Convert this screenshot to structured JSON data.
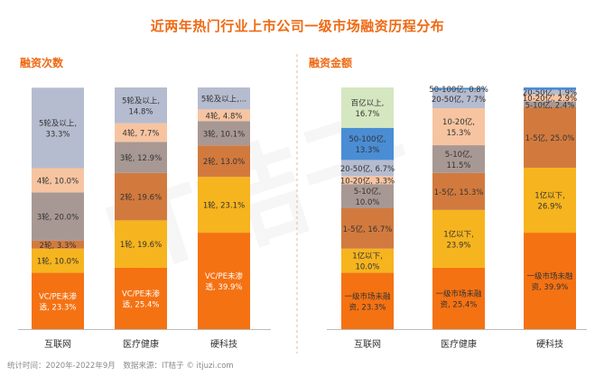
{
  "page": {
    "title": "近两年热门行业上市公司一级市场融资历程分布",
    "footer_time": "统计时间：2020年-2022年9月",
    "footer_source": "数据来源：IT桔子 © itjuzi.com",
    "watermark": "IT桔子"
  },
  "colors": {
    "title": "#ee6a13",
    "axis": "#bbbbbb",
    "divider": "#f2b78f"
  },
  "chart_data": [
    {
      "type": "bar",
      "stacked": true,
      "title": "融资次数",
      "categories": [
        "互联网",
        "医疗健康",
        "硬科技"
      ],
      "ylim": [
        0,
        100
      ],
      "series": [
        {
          "name": "VC/PE未渗透",
          "color": "#f57213",
          "text_color": "#ffffff",
          "values": [
            23.3,
            25.4,
            39.9
          ],
          "labels": [
            [
              "VC/PE未渗",
              "透, 23.3%"
            ],
            [
              "VC/PE未渗",
              "透, 25.4%"
            ],
            [
              "VC/PE未渗",
              "透, 39.9%"
            ]
          ]
        },
        {
          "name": "1轮",
          "color": "#f6b41e",
          "text_color": "#333333",
          "values": [
            10.0,
            19.6,
            23.1
          ],
          "labels": [
            [
              "1轮, 10.0%"
            ],
            [
              "1轮, 19.6%"
            ],
            [
              "1轮, 23.1%"
            ]
          ]
        },
        {
          "name": "2轮",
          "color": "#d27a3e",
          "text_color": "#333333",
          "values": [
            3.3,
            19.6,
            13.0
          ],
          "labels": [
            [
              "2轮, 3.3%"
            ],
            [
              "2轮, 19.6%"
            ],
            [
              "2轮, 13.0%"
            ]
          ]
        },
        {
          "name": "3轮",
          "color": "#a89893",
          "text_color": "#333333",
          "values": [
            20.0,
            12.9,
            10.1
          ],
          "labels": [
            [
              "3轮, 20.0%"
            ],
            [
              "3轮, 12.9%"
            ],
            [
              "3轮, 10.1%"
            ]
          ]
        },
        {
          "name": "4轮",
          "color": "#f7c4a1",
          "text_color": "#333333",
          "values": [
            10.0,
            7.7,
            4.8
          ],
          "labels": [
            [
              "4轮, 10.0%"
            ],
            [
              "4轮, 7.7%"
            ],
            [
              "4轮, 4.8%"
            ]
          ]
        },
        {
          "name": "5轮及以上",
          "color": "#b6bccf",
          "text_color": "#333333",
          "values": [
            33.3,
            14.8,
            9.1
          ],
          "labels": [
            [
              "5轮及以上,",
              "33.3%"
            ],
            [
              "5轮及以上,",
              "14.8%"
            ],
            [
              "5轮及以上,..."
            ]
          ]
        }
      ]
    },
    {
      "type": "bar",
      "stacked": true,
      "title": "融资金额",
      "categories": [
        "互联网",
        "医疗健康",
        "硬科技"
      ],
      "ylim": [
        0,
        100
      ],
      "series": [
        {
          "name": "一级市场未融资",
          "color": "#f57213",
          "text_color": "#333333",
          "values": [
            23.3,
            25.4,
            39.9
          ],
          "labels": [
            [
              "一级市场未融",
              "资, 23.3%"
            ],
            [
              "一级市场未融",
              "资, 25.4%"
            ],
            [
              "一级市场未融",
              "资, 39.9%"
            ]
          ]
        },
        {
          "name": "1亿以下",
          "color": "#f6b41e",
          "text_color": "#333333",
          "values": [
            10.0,
            23.9,
            26.9
          ],
          "labels": [
            [
              "1亿以下,",
              "10.0%"
            ],
            [
              "1亿以下,",
              "23.9%"
            ],
            [
              "1亿以下,",
              "26.9%"
            ]
          ]
        },
        {
          "name": "1-5亿",
          "color": "#d27a3e",
          "text_color": "#333333",
          "values": [
            16.7,
            15.3,
            25.0
          ],
          "labels": [
            [
              "1-5亿, 16.7%"
            ],
            [
              "1-5亿, 15.3%"
            ],
            [
              "1-5亿, 25.0%"
            ]
          ]
        },
        {
          "name": "5-10亿",
          "color": "#a89893",
          "text_color": "#333333",
          "values": [
            10.0,
            11.5,
            2.4
          ],
          "labels": [
            [
              "5-10亿,",
              "10.0%"
            ],
            [
              "5-10亿,",
              "11.5%"
            ],
            [
              "5-10亿, 2.4%"
            ]
          ]
        },
        {
          "name": "10-20亿",
          "color": "#f7c4a1",
          "text_color": "#333333",
          "values": [
            3.3,
            15.3,
            2.9
          ],
          "labels": [
            [
              "10-20亿, 3.3%"
            ],
            [
              "10-20亿,",
              "15.3%"
            ],
            [
              "10-20亿, 2.9%"
            ]
          ]
        },
        {
          "name": "20-50亿",
          "color": "#b6bccf",
          "text_color": "#333333",
          "values": [
            6.7,
            7.7,
            1.9
          ],
          "labels": [
            [
              "20-50亿, 6.7%"
            ],
            [
              "20-50亿, 7.7%"
            ],
            [
              "20-50亿, 1.9%"
            ]
          ]
        },
        {
          "name": "50-100亿",
          "color": "#4a8dd4",
          "text_color": "#333333",
          "values": [
            13.3,
            0.8,
            1.0
          ],
          "labels": [
            [
              "50-100亿,",
              "13.3%"
            ],
            [
              "50-100亿, 0.8%"
            ],
            []
          ]
        },
        {
          "name": "百亿以上",
          "color": "#d5e7c0",
          "text_color": "#333333",
          "values": [
            16.7,
            0.1,
            0.0
          ],
          "labels": [
            [
              "百亿以上,",
              "16.7%"
            ],
            [],
            []
          ]
        }
      ]
    }
  ]
}
